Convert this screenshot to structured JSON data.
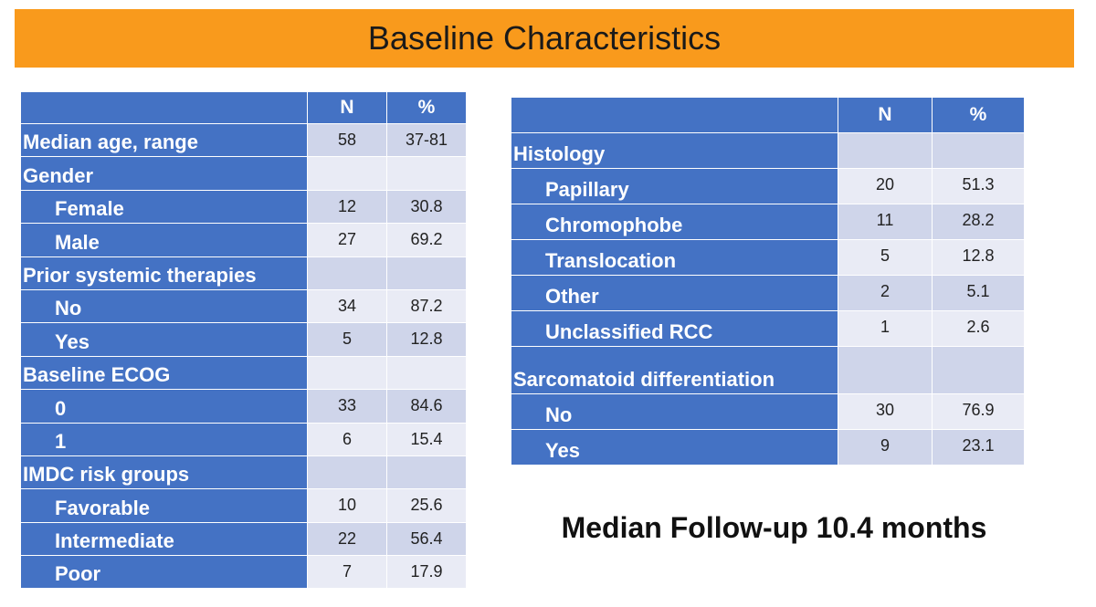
{
  "header": {
    "title": "Baseline Characteristics"
  },
  "left_table": {
    "columns": [
      "N",
      "%"
    ],
    "rows": [
      {
        "label": "Median age, range",
        "n": 58,
        "pct": "37-81"
      },
      {
        "label": "Gender",
        "items": [
          {
            "label": "Female",
            "n": 12,
            "pct": 30.8
          },
          {
            "label": "Male",
            "n": 27,
            "pct": 69.2
          }
        ]
      },
      {
        "label": "Prior systemic therapies",
        "items": [
          {
            "label": "No",
            "n": 34,
            "pct": 87.2
          },
          {
            "label": "Yes",
            "n": 5,
            "pct": 12.8
          }
        ]
      },
      {
        "label": "Baseline ECOG",
        "items": [
          {
            "label": "0",
            "n": 33,
            "pct": 84.6
          },
          {
            "label": "1",
            "n": 6,
            "pct": 15.4
          }
        ]
      },
      {
        "label": "IMDC risk groups",
        "items": [
          {
            "label": "Favorable",
            "n": 10,
            "pct": 25.6
          },
          {
            "label": "Intermediate",
            "n": 22,
            "pct": 56.4
          },
          {
            "label": "Poor",
            "n": 7,
            "pct": 17.9
          }
        ]
      }
    ]
  },
  "right_table": {
    "columns": [
      "N",
      "%"
    ],
    "rows": [
      {
        "label": "Histology",
        "items": [
          {
            "label": "Papillary",
            "n": 20,
            "pct": 51.3
          },
          {
            "label": "Chromophobe",
            "n": 11,
            "pct": 28.2
          },
          {
            "label": "Translocation",
            "n": 5,
            "pct": 12.8
          },
          {
            "label": "Other",
            "n": 2,
            "pct": 5.1
          },
          {
            "label": "Unclassified RCC",
            "n": 1,
            "pct": 2.6
          }
        ]
      },
      {
        "label": "Sarcomatoid differentiation",
        "items": [
          {
            "label": "No",
            "n": 30,
            "pct": 76.9
          },
          {
            "label": "Yes",
            "n": 9,
            "pct": 23.1
          }
        ]
      }
    ]
  },
  "footer": {
    "note": "Median Follow-up 10.4 months"
  }
}
